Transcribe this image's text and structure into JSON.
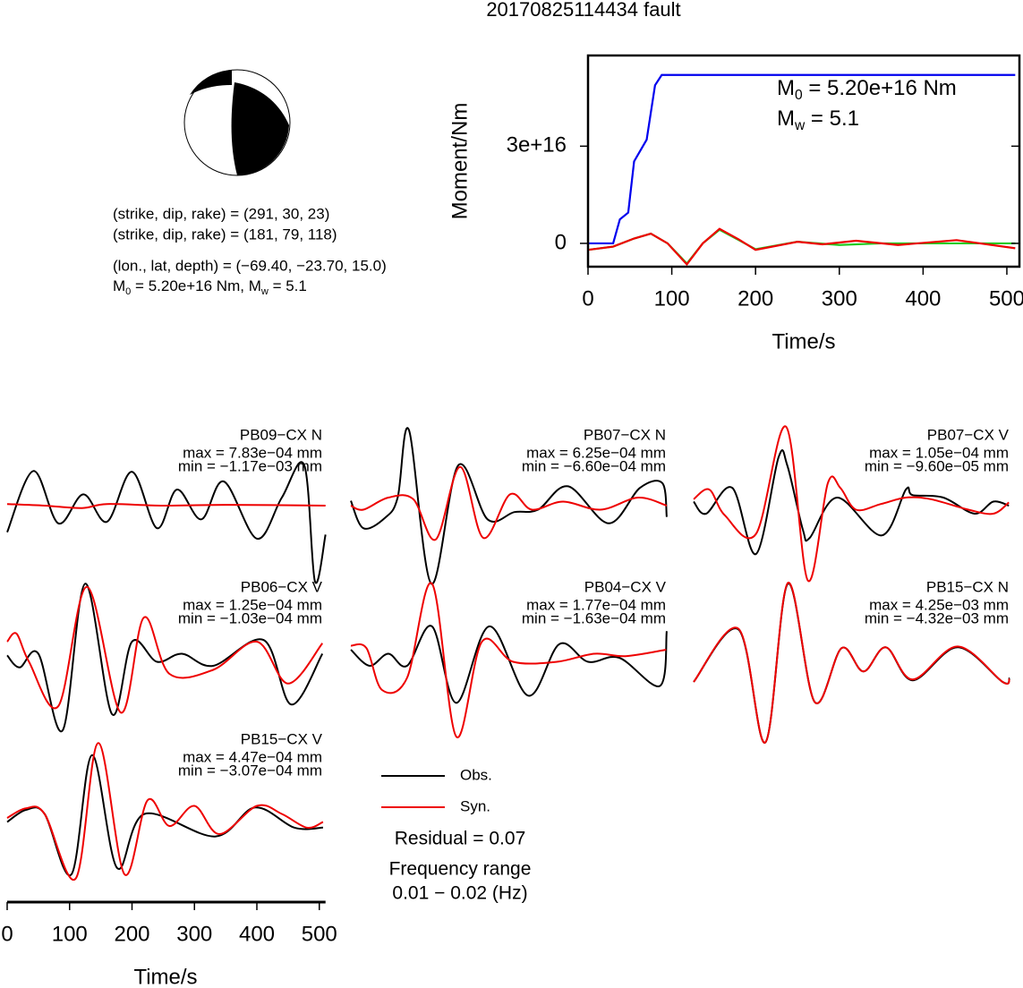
{
  "title": "20170825114434 fault",
  "mechanism": {
    "lines": [
      "(strike, dip, rake) = (291, 30, 23)",
      "(strike, dip, rake) = (181, 79, 118)",
      "(lon., lat, depth) = (−69.40, −23.70, 15.0)"
    ],
    "moment": [
      "M",
      "0",
      " = 5.20e+16 Nm, M",
      "w",
      " = 5.1"
    ]
  },
  "chart_data": [
    {
      "type": "line",
      "xlabel": "Time/s",
      "ylabel": "Moment/Nm",
      "xlim": [
        0,
        515
      ],
      "xticks": [
        0,
        100,
        200,
        300,
        400,
        500
      ],
      "ylim": [
        -7200000000000000,
        58000000000000000
      ],
      "yticks": [
        0,
        {
          "value": 30000000000000000,
          "label": "3e+16"
        }
      ],
      "annotations": [
        [
          "M",
          "0",
          " = 5.20e+16 Nm"
        ],
        [
          "M",
          "w",
          " = 5.1"
        ]
      ],
      "series": [
        {
          "color": "#0000ee",
          "x": [
            0,
            30,
            38,
            48,
            55,
            70,
            80,
            88,
            510
          ],
          "values": [
            0,
            0,
            7400000000000000,
            9500000000000000,
            25300000000000000,
            32000000000000000,
            48800000000000000,
            52000000000000000,
            52000000000000000
          ]
        },
        {
          "color": "#22cc22",
          "x": [
            0,
            30,
            55,
            75,
            95,
            118,
            137,
            157,
            180,
            200,
            250,
            300,
            350,
            400,
            450,
            510
          ],
          "values": [
            -2000000000000000,
            -1000000000000000,
            1500000000000000,
            3000000000000000,
            0,
            -6200000000000000,
            0,
            4200000000000000,
            1000000000000000,
            -1800000000000000,
            500000000000000,
            -500000000000000,
            0,
            0,
            0,
            0
          ]
        },
        {
          "color": "#ee0000",
          "x": [
            0,
            30,
            55,
            75,
            95,
            118,
            137,
            157,
            180,
            200,
            250,
            280,
            320,
            370,
            440,
            510
          ],
          "values": [
            -2000000000000000,
            -1000000000000000,
            1500000000000000,
            3000000000000000,
            0,
            -6500000000000000,
            0,
            4500000000000000,
            1200000000000000,
            -2000000000000000,
            500000000000000,
            -300000000000000,
            800000000000000,
            -500000000000000,
            1000000000000000,
            -1500000000000000
          ]
        }
      ]
    },
    {
      "type": "waveforms",
      "xlabel": "Time/s",
      "xlim": [
        0,
        510
      ],
      "xticks": [
        0,
        100,
        200,
        300,
        400,
        500
      ],
      "ylim": [
        -1,
        1
      ],
      "annotations": [
        "Residual = 0.07",
        "Frequency range",
        "0.01 − 0.02 (Hz)"
      ],
      "panels": [
        {
          "label": "PB09−CX N",
          "max": "max = 7.83e−04 mm",
          "min": "min = −1.17e−03 mm",
          "series": [
            {
              "name": "Obs.",
              "color": "#000000",
              "x": [
                0,
                42,
                82,
                122,
                160,
                200,
                240,
                272,
                311,
                347,
                400,
                440,
                476,
                493,
                510
              ],
              "values": [
                -0.33,
                0.43,
                -0.22,
                0.14,
                -0.2,
                0.42,
                -0.28,
                0.2,
                -0.17,
                0.3,
                -0.41,
                0.1,
                0.5,
                -0.94,
                -0.36
              ]
            },
            {
              "name": "Syn.",
              "color": "#ee0000",
              "x": [
                0,
                60,
                120,
                160,
                250,
                350,
                510
              ],
              "values": [
                0.02,
                0,
                -0.03,
                0.02,
                0,
                0.01,
                0
              ]
            }
          ]
        },
        {
          "label": "PB07−CX N",
          "max": "max = 6.25e−04 mm",
          "min": "min = −6.60e−04 mm",
          "series": [
            {
              "name": "Obs.",
              "color": "#000000",
              "x": [
                0,
                20,
                55,
                75,
                93,
                129,
                172,
                219,
                262,
                300,
                348,
                413,
                463,
                499,
                506
              ],
              "values": [
                0.06,
                -0.28,
                -0.15,
                0.1,
                0.94,
                -0.97,
                0.5,
                -0.17,
                -0.08,
                -0.05,
                0.24,
                -0.22,
                0.22,
                0.28,
                -0.14
              ]
            },
            {
              "name": "Syn.",
              "color": "#ee0000",
              "x": [
                0,
                20,
                60,
                100,
                136,
                175,
                212,
                255,
                290,
                340,
                400,
                460,
                506
              ],
              "values": [
                0,
                -0.05,
                0.1,
                0.08,
                -0.42,
                0.48,
                -0.4,
                0.14,
                -0.05,
                0.05,
                -0.05,
                0.1,
                0
              ]
            }
          ]
        },
        {
          "label": "PB07−CX V",
          "max": "max = 1.05e−04 mm",
          "min": "min = −9.60e−05 mm",
          "series": [
            {
              "name": "Obs.",
              "color": "#000000",
              "x": [
                0,
                20,
                62,
                100,
                136,
                150,
                175,
                186,
                230,
                301,
                340,
                351,
                400,
                450,
                480,
                505
              ],
              "values": [
                0.05,
                -0.1,
                0.22,
                -0.6,
                0.6,
                0.5,
                -0.3,
                -0.4,
                0.1,
                -0.37,
                0.2,
                0.13,
                0.1,
                -0.1,
                0.05,
                0
              ]
            },
            {
              "name": "Syn.",
              "color": "#ee0000",
              "x": [
                0,
                25,
                50,
                100,
                148,
                183,
                215,
                235,
                260,
                300,
                340,
                380,
                440,
                480,
                505
              ],
              "values": [
                0.08,
                0.2,
                -0.12,
                -0.35,
                0.98,
                -0.93,
                0.28,
                0.22,
                -0.05,
                0.02,
                0.1,
                0.08,
                -0.05,
                -0.1,
                0.04
              ]
            }
          ]
        },
        {
          "label": "PB06−CX V",
          "max": "max = 1.25e−04 mm",
          "min": "min = −1.03e−04 mm",
          "series": [
            {
              "name": "Obs.",
              "color": "#000000",
              "x": [
                0,
                20,
                50,
                89,
                125,
                168,
                200,
                240,
                280,
                330,
                411,
                455,
                505
              ],
              "values": [
                0.03,
                -0.12,
                0.05,
                -0.9,
                0.92,
                -0.7,
                0.2,
                -0.05,
                0.05,
                -0.1,
                0.22,
                -0.58,
                0.05
              ]
            },
            {
              "name": "Syn.",
              "color": "#ee0000",
              "x": [
                0,
                15,
                35,
                82,
                128,
                182,
                219,
                260,
                330,
                400,
                450,
                505
              ],
              "values": [
                0.2,
                0.3,
                -0.05,
                -0.6,
                0.88,
                -0.68,
                0.5,
                -0.2,
                -0.15,
                0.2,
                -0.32,
                0.18
              ]
            }
          ]
        },
        {
          "label": "PB04−CX V",
          "max": "max = 1.77e−04 mm",
          "min": "min = −1.63e−04 mm",
          "series": [
            {
              "name": "Obs.",
              "color": "#000000",
              "x": [
                0,
                30,
                60,
                90,
                130,
                169,
                222,
                284,
                334,
                380,
                430,
                495,
                506
              ],
              "values": [
                0.1,
                -0.1,
                0.05,
                -0.1,
                0.39,
                -0.56,
                0.39,
                -0.47,
                0.17,
                -0.05,
                0,
                -0.35,
                0.33
              ]
            },
            {
              "name": "Syn.",
              "color": "#ee0000",
              "x": [
                0,
                25,
                50,
                90,
                130,
                169,
                210,
                260,
                330,
                390,
                440,
                505
              ],
              "values": [
                0.15,
                0.12,
                -0.4,
                -0.25,
                0.92,
                -0.98,
                0.2,
                -0.05,
                -0.05,
                0.05,
                0.02,
                0.1
              ]
            }
          ]
        },
        {
          "label": "PB15−CX N",
          "max": "max = 4.25e−03 mm",
          "min": "min = −4.32e−03 mm",
          "series": [
            {
              "name": "Obs.",
              "color": "#000000",
              "x": [
                0,
                72,
                115,
                151,
                194,
                237,
                272,
                308,
                351,
                423,
                495,
                506
              ],
              "values": [
                -0.3,
                0.35,
                -1.05,
                0.92,
                -0.55,
                0.12,
                -0.17,
                0.13,
                -0.28,
                0.13,
                -0.3,
                -0.25
              ]
            },
            {
              "name": "Syn.",
              "color": "#ee0000",
              "x": [
                0,
                72,
                115,
                151,
                194,
                237,
                272,
                308,
                351,
                423,
                495,
                506
              ],
              "values": [
                -0.3,
                0.36,
                -1.05,
                0.93,
                -0.55,
                0.12,
                -0.17,
                0.13,
                -0.27,
                0.14,
                -0.3,
                -0.26
              ]
            }
          ]
        },
        {
          "label": "PB15−CX V",
          "max": "max = 4.47e−04 mm",
          "min": "min = −3.07e−04 mm",
          "series": [
            {
              "name": "Obs.",
              "color": "#000000",
              "x": [
                0,
                30,
                60,
                103,
                136,
                176,
                220,
                333,
                397,
                460,
                506
              ],
              "values": [
                -0.15,
                0,
                -0.05,
                -0.8,
                0.68,
                -0.72,
                -0.05,
                -0.33,
                0.03,
                -0.22,
                -0.22
              ]
            },
            {
              "name": "Syn.",
              "color": "#ee0000",
              "x": [
                0,
                30,
                60,
                110,
                146,
                188,
                225,
                260,
                300,
                340,
                400,
                440,
                480,
                506
              ],
              "values": [
                -0.1,
                0.02,
                -0.05,
                -0.85,
                0.83,
                -0.8,
                0.12,
                -0.2,
                0.05,
                -0.3,
                0.05,
                -0.05,
                -0.22,
                -0.15
              ]
            }
          ]
        }
      ]
    }
  ]
}
